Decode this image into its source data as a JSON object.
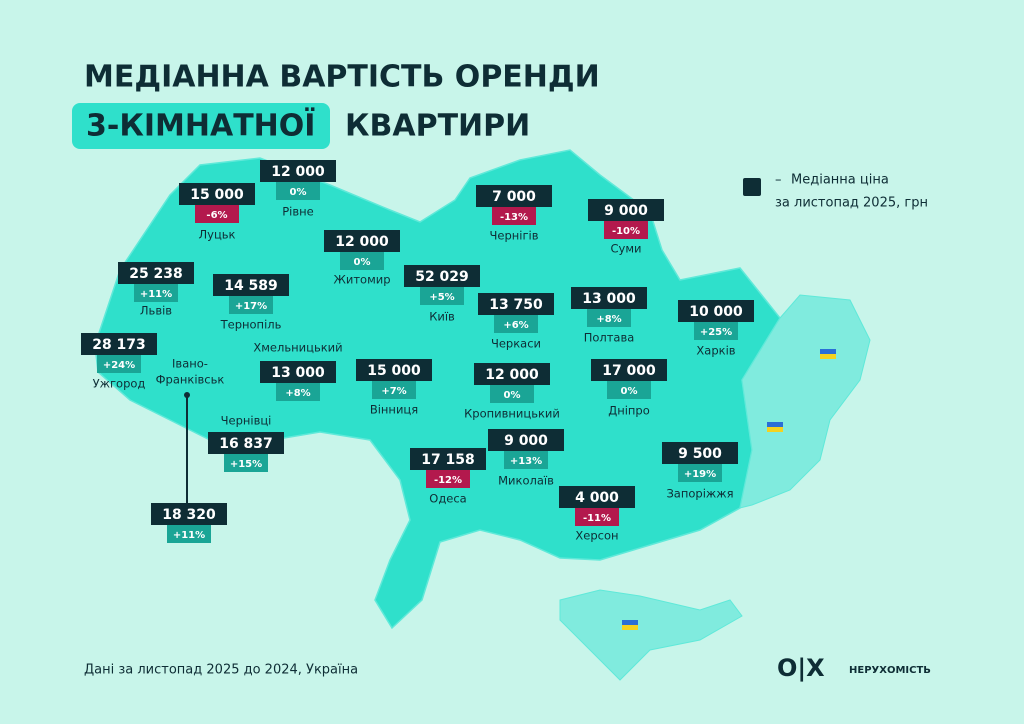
{
  "header": {
    "title_line1": "МЕДІАННА ВАРТІСТЬ ОРЕНДИ",
    "title_highlight": "3-КІМНАТНОЇ",
    "title_rest": "КВАРТИРИ"
  },
  "legend": {
    "dash": "–",
    "line1": "Медіанна ціна",
    "line2": "за листопад 2025, грн"
  },
  "regions": [
    {
      "name": "Рівне",
      "price": "12 000",
      "change": "0%"
    },
    {
      "name": "Луцьк",
      "price": "15 000",
      "change": "-6%"
    },
    {
      "name": "Житомир",
      "price": "12 000",
      "change": "0%"
    },
    {
      "name": "Чернігів",
      "price": "7 000",
      "change": "-13%"
    },
    {
      "name": "Суми",
      "price": "9 000",
      "change": "-10%"
    },
    {
      "name": "Львів",
      "price": "25 238",
      "change": "+11%"
    },
    {
      "name": "Тернопіль",
      "price": "14 589",
      "change": "+17%"
    },
    {
      "name": "Київ",
      "price": "52 029",
      "change": "+5%"
    },
    {
      "name": "Черкаси",
      "price": "13 750",
      "change": "+6%"
    },
    {
      "name": "Полтава",
      "price": "13 000",
      "change": "+8%"
    },
    {
      "name": "Харків",
      "price": "10 000",
      "change": "+25%"
    },
    {
      "name": "Ужгород",
      "price": "28 173",
      "change": "+24%"
    },
    {
      "name": "Хмельницький",
      "price": "13 000",
      "change": "+8%"
    },
    {
      "name": "Вінниця",
      "price": "15 000",
      "change": "+7%"
    },
    {
      "name": "Кропивницький",
      "price": "12 000",
      "change": "0%"
    },
    {
      "name": "Дніпро",
      "price": "17 000",
      "change": "0%"
    },
    {
      "name": "Чернівці",
      "price": "16 837",
      "change": "+15%"
    },
    {
      "name": "Одеса",
      "price": "17 158",
      "change": "-12%"
    },
    {
      "name": "Миколаїв",
      "price": "9 000",
      "change": "+13%"
    },
    {
      "name": "Запоріжжя",
      "price": "9 500",
      "change": "+19%"
    },
    {
      "name": "Херсон",
      "price": "4 000",
      "change": "-11%"
    }
  ],
  "ivano_frankivsk": {
    "name_line1": "Івано-",
    "name_line2": "Франківськ",
    "price": "18 320",
    "change": "+11%"
  },
  "footer": {
    "note": "Дані за листопад 2025 до 2024, Україна",
    "logo": "O|X",
    "logo_caption": "НЕРУХОМІСТЬ"
  }
}
